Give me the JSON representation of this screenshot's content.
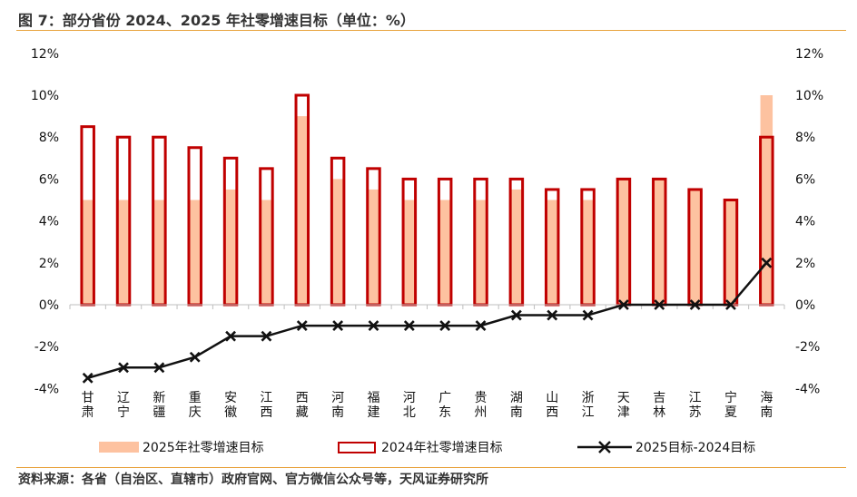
{
  "header": {
    "title": "图 7：部分省份 2024、2025 年社零增速目标（单位：%）"
  },
  "footer": {
    "source": "资料来源：各省（自治区、直辖市）政府官网、官方微信公众号等，天风证券研究所"
  },
  "colors": {
    "fill_2025": "#fdc2a0",
    "outline_2024": "#c00000",
    "diff_line": "#111111",
    "accent_rule": "#e8a33d"
  },
  "chart_data": {
    "type": "bar",
    "categories": [
      "甘肃",
      "辽宁",
      "新疆",
      "重庆",
      "安徽",
      "江西",
      "西藏",
      "河南",
      "福建",
      "河北",
      "广东",
      "贵州",
      "湖南",
      "山西",
      "浙江",
      "天津",
      "吉林",
      "江苏",
      "宁夏",
      "海南"
    ],
    "series": [
      {
        "name": "2025年社零增速目标",
        "type": "bar",
        "values": [
          5,
          5,
          5,
          5,
          5.5,
          5,
          9,
          6,
          5.5,
          5,
          5,
          5,
          5.5,
          5,
          5,
          6,
          6,
          5.5,
          5,
          10
        ]
      },
      {
        "name": "2024年社零增速目标",
        "type": "bar-outline",
        "values": [
          8.5,
          8,
          8,
          7.5,
          7,
          6.5,
          10,
          7,
          6.5,
          6,
          6,
          6,
          6,
          5.5,
          5.5,
          6,
          6,
          5.5,
          5,
          8
        ]
      },
      {
        "name": "2025目标-2024目标",
        "type": "line",
        "values": [
          -3.5,
          -3,
          -3,
          -2.5,
          -1.5,
          -1.5,
          -1,
          -1,
          -1,
          -1,
          -1,
          -1,
          -0.5,
          -0.5,
          -0.5,
          0,
          0,
          0,
          0,
          2
        ]
      }
    ],
    "ylim": [
      -4,
      12
    ],
    "y_ticks": [
      "12%",
      "10%",
      "8%",
      "6%",
      "4%",
      "2%",
      "0%",
      "-2%",
      "-4%"
    ],
    "y_tick_values": [
      12,
      10,
      8,
      6,
      4,
      2,
      0,
      -2,
      -4
    ],
    "grid": false,
    "legend_position": "bottom"
  }
}
